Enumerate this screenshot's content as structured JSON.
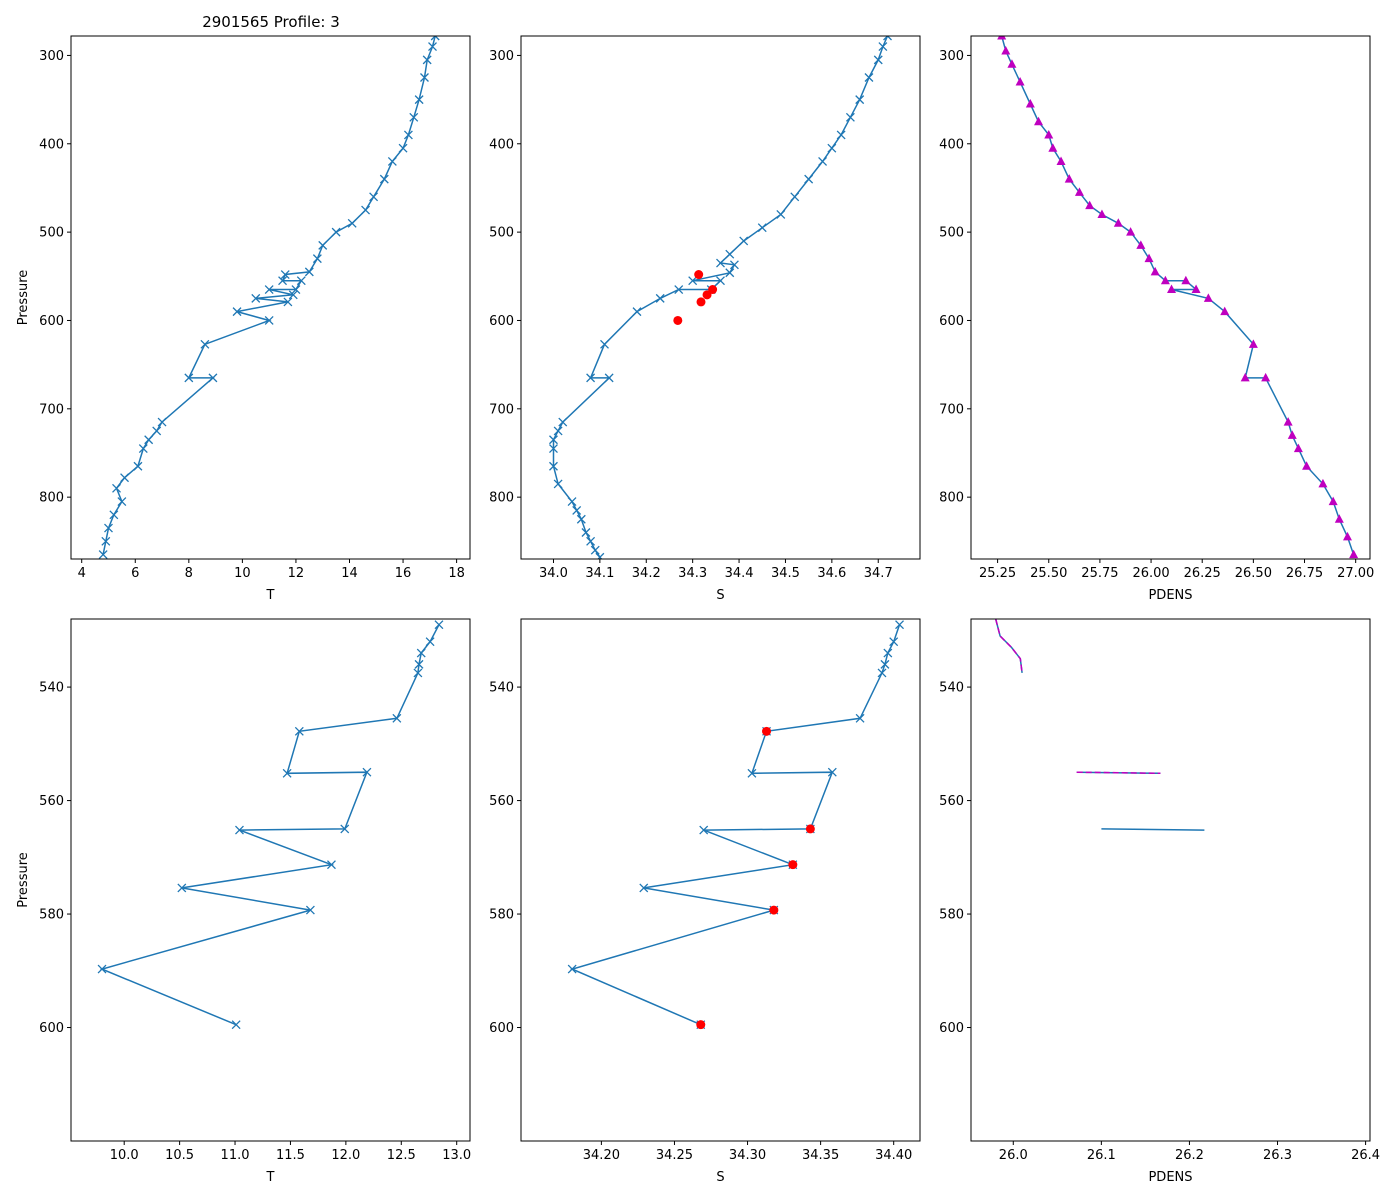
{
  "title": "2901565 Profile: 3",
  "colors": {
    "series": "#1f77b4",
    "flag": "#ff0000",
    "density": "#bf00bf"
  },
  "chart_data": [
    {
      "id": "t-full",
      "type": "scatter",
      "xlabel": "T",
      "ylabel": "Pressure",
      "xlim": [
        3.6,
        18.5
      ],
      "ylim": [
        870,
        278
      ],
      "y_inverted": true,
      "xticks": [
        4,
        6,
        8,
        10,
        12,
        14,
        16,
        18
      ],
      "xtick_labels": [
        "4",
        "6",
        "8",
        "10",
        "12",
        "14",
        "16",
        "18"
      ],
      "yticks": [
        300,
        400,
        500,
        600,
        700,
        800
      ],
      "ytick_labels": [
        "300",
        "400",
        "500",
        "600",
        "700",
        "800"
      ],
      "series": [
        {
          "name": "profile",
          "marker": "x",
          "color": "#1f77b4",
          "line": true,
          "points": [
            [
              17.2,
              278
            ],
            [
              17.1,
              290
            ],
            [
              16.9,
              305
            ],
            [
              16.8,
              325
            ],
            [
              16.6,
              350
            ],
            [
              16.4,
              370
            ],
            [
              16.2,
              390
            ],
            [
              16.0,
              405
            ],
            [
              15.6,
              420
            ],
            [
              15.3,
              440
            ],
            [
              14.9,
              460
            ],
            [
              14.6,
              475
            ],
            [
              14.1,
              490
            ],
            [
              13.5,
              500
            ],
            [
              13.0,
              515
            ],
            [
              12.8,
              530
            ],
            [
              12.5,
              545
            ],
            [
              11.6,
              548
            ],
            [
              11.5,
              555
            ],
            [
              12.2,
              555
            ],
            [
              12.0,
              565
            ],
            [
              11.0,
              565
            ],
            [
              11.9,
              571
            ],
            [
              10.5,
              575
            ],
            [
              11.7,
              579
            ],
            [
              9.8,
              590
            ],
            [
              11.0,
              600
            ],
            [
              8.6,
              627
            ],
            [
              8.0,
              665
            ],
            [
              8.9,
              665
            ],
            [
              7.0,
              715
            ],
            [
              6.8,
              725
            ],
            [
              6.5,
              735
            ],
            [
              6.3,
              745
            ],
            [
              6.1,
              765
            ],
            [
              5.6,
              778
            ],
            [
              5.3,
              790
            ],
            [
              5.5,
              805
            ],
            [
              5.2,
              820
            ],
            [
              5.0,
              835
            ],
            [
              4.9,
              850
            ],
            [
              4.8,
              865
            ]
          ]
        }
      ]
    },
    {
      "id": "s-full",
      "type": "scatter",
      "xlabel": "S",
      "ylabel": "",
      "xlim": [
        33.93,
        34.79
      ],
      "ylim": [
        870,
        278
      ],
      "y_inverted": true,
      "xticks": [
        34.0,
        34.1,
        34.2,
        34.3,
        34.4,
        34.5,
        34.6,
        34.7
      ],
      "xtick_labels": [
        "34.0",
        "34.1",
        "34.2",
        "34.3",
        "34.4",
        "34.5",
        "34.6",
        "34.7"
      ],
      "yticks": [
        300,
        400,
        500,
        600,
        700,
        800
      ],
      "ytick_labels": [
        "300",
        "400",
        "500",
        "600",
        "700",
        "800"
      ],
      "series": [
        {
          "name": "profile",
          "marker": "x",
          "color": "#1f77b4",
          "line": true,
          "points": [
            [
              34.72,
              278
            ],
            [
              34.71,
              290
            ],
            [
              34.7,
              305
            ],
            [
              34.68,
              325
            ],
            [
              34.66,
              350
            ],
            [
              34.64,
              370
            ],
            [
              34.62,
              390
            ],
            [
              34.6,
              405
            ],
            [
              34.58,
              420
            ],
            [
              34.55,
              440
            ],
            [
              34.52,
              460
            ],
            [
              34.49,
              480
            ],
            [
              34.45,
              495
            ],
            [
              34.41,
              510
            ],
            [
              34.38,
              525
            ],
            [
              34.36,
              535
            ],
            [
              34.39,
              537
            ],
            [
              34.38,
              546
            ],
            [
              34.3,
              555
            ],
            [
              34.36,
              555
            ],
            [
              34.34,
              565
            ],
            [
              34.27,
              565
            ],
            [
              34.23,
              575
            ],
            [
              34.18,
              590
            ],
            [
              34.11,
              627
            ],
            [
              34.08,
              665
            ],
            [
              34.12,
              665
            ],
            [
              34.02,
              715
            ],
            [
              34.01,
              725
            ],
            [
              34.0,
              735
            ],
            [
              34.0,
              745
            ],
            [
              34.0,
              765
            ],
            [
              34.01,
              785
            ],
            [
              34.04,
              805
            ],
            [
              34.05,
              815
            ],
            [
              34.06,
              825
            ],
            [
              34.07,
              840
            ],
            [
              34.08,
              850
            ],
            [
              34.09,
              860
            ],
            [
              34.1,
              868
            ]
          ]
        },
        {
          "name": "flagged",
          "marker": "circle",
          "color": "#ff0000",
          "line": false,
          "points": [
            [
              34.313,
              548
            ],
            [
              34.343,
              565
            ],
            [
              34.331,
              571
            ],
            [
              34.318,
              579
            ],
            [
              34.268,
              600
            ]
          ]
        }
      ]
    },
    {
      "id": "pdens-full",
      "type": "scatter",
      "xlabel": "PDENS",
      "ylabel": "",
      "xlim": [
        25.12,
        27.07
      ],
      "ylim": [
        870,
        278
      ],
      "y_inverted": true,
      "xticks": [
        25.25,
        25.5,
        25.75,
        26.0,
        26.25,
        26.5,
        26.75,
        27.0
      ],
      "xtick_labels": [
        "25.25",
        "25.50",
        "25.75",
        "26.00",
        "26.25",
        "26.50",
        "26.75",
        "27.00"
      ],
      "yticks": [
        300,
        400,
        500,
        600,
        700,
        800
      ],
      "ytick_labels": [
        "300",
        "400",
        "500",
        "600",
        "700",
        "800"
      ],
      "series": [
        {
          "name": "density",
          "marker": "triangle",
          "color": "#bf00bf",
          "line": true,
          "line_color": "#1f77b4",
          "points": [
            [
              25.27,
              278
            ],
            [
              25.29,
              295
            ],
            [
              25.32,
              310
            ],
            [
              25.36,
              330
            ],
            [
              25.41,
              355
            ],
            [
              25.45,
              375
            ],
            [
              25.5,
              390
            ],
            [
              25.52,
              405
            ],
            [
              25.56,
              420
            ],
            [
              25.6,
              440
            ],
            [
              25.65,
              455
            ],
            [
              25.7,
              470
            ],
            [
              25.76,
              480
            ],
            [
              25.84,
              490
            ],
            [
              25.9,
              500
            ],
            [
              25.95,
              515
            ],
            [
              25.99,
              530
            ],
            [
              26.02,
              545
            ],
            [
              26.07,
              555
            ],
            [
              26.17,
              555
            ],
            [
              26.22,
              565
            ],
            [
              26.1,
              565
            ],
            [
              26.28,
              575
            ],
            [
              26.36,
              590
            ],
            [
              26.5,
              627
            ],
            [
              26.46,
              665
            ],
            [
              26.56,
              665
            ],
            [
              26.67,
              715
            ],
            [
              26.69,
              730
            ],
            [
              26.72,
              745
            ],
            [
              26.76,
              765
            ],
            [
              26.84,
              785
            ],
            [
              26.89,
              805
            ],
            [
              26.92,
              825
            ],
            [
              26.96,
              845
            ],
            [
              26.99,
              865
            ]
          ]
        }
      ]
    },
    {
      "id": "t-zoom",
      "type": "scatter",
      "xlabel": "T",
      "ylabel": "Pressure",
      "xlim": [
        9.52,
        13.12
      ],
      "ylim": [
        620,
        528
      ],
      "y_inverted": true,
      "xticks": [
        10.0,
        10.5,
        11.0,
        11.5,
        12.0,
        12.5,
        13.0
      ],
      "xtick_labels": [
        "10.0",
        "10.5",
        "11.0",
        "11.5",
        "12.0",
        "12.5",
        "13.0"
      ],
      "yticks": [
        540,
        560,
        580,
        600
      ],
      "ytick_labels": [
        "540",
        "560",
        "580",
        "600"
      ],
      "series": [
        {
          "name": "profile",
          "marker": "x",
          "color": "#1f77b4",
          "line": true,
          "points": [
            [
              12.84,
              529
            ],
            [
              12.76,
              532
            ],
            [
              12.68,
              534
            ],
            [
              12.66,
              536
            ],
            [
              12.65,
              537.5
            ],
            [
              12.46,
              545.5
            ],
            [
              11.58,
              547.8
            ],
            [
              11.47,
              555.2
            ],
            [
              12.19,
              555.0
            ],
            [
              11.99,
              565.0
            ],
            [
              11.04,
              565.2
            ],
            [
              11.87,
              571.3
            ],
            [
              10.52,
              575.4
            ],
            [
              11.68,
              579.3
            ],
            [
              9.8,
              589.7
            ],
            [
              11.01,
              599.5
            ]
          ]
        }
      ]
    },
    {
      "id": "s-zoom",
      "type": "scatter",
      "xlabel": "S",
      "ylabel": "",
      "xlim": [
        34.145,
        34.418
      ],
      "ylim": [
        620,
        528
      ],
      "y_inverted": true,
      "xticks": [
        34.2,
        34.25,
        34.3,
        34.35,
        34.4
      ],
      "xtick_labels": [
        "34.20",
        "34.25",
        "34.30",
        "34.35",
        "34.40"
      ],
      "yticks": [
        540,
        560,
        580,
        600
      ],
      "ytick_labels": [
        "540",
        "560",
        "580",
        "600"
      ],
      "series": [
        {
          "name": "profile",
          "marker": "x",
          "color": "#1f77b4",
          "line": true,
          "points": [
            [
              34.404,
              529
            ],
            [
              34.4,
              532
            ],
            [
              34.396,
              534
            ],
            [
              34.394,
              536
            ],
            [
              34.392,
              537.5
            ],
            [
              34.377,
              545.5
            ],
            [
              34.313,
              547.8
            ],
            [
              34.303,
              555.2
            ],
            [
              34.358,
              555.0
            ],
            [
              34.343,
              565.0
            ],
            [
              34.27,
              565.2
            ],
            [
              34.331,
              571.3
            ],
            [
              34.229,
              575.4
            ],
            [
              34.318,
              579.3
            ],
            [
              34.18,
              589.7
            ],
            [
              34.268,
              599.5
            ]
          ]
        },
        {
          "name": "flagged",
          "marker": "circle",
          "color": "#ff0000",
          "line": false,
          "points": [
            [
              34.313,
              547.8
            ],
            [
              34.343,
              565.0
            ],
            [
              34.331,
              571.3
            ],
            [
              34.318,
              579.3
            ],
            [
              34.268,
              599.5
            ]
          ]
        }
      ]
    },
    {
      "id": "pdens-zoom",
      "type": "line",
      "xlabel": "PDENS",
      "ylabel": "",
      "xlim": [
        25.952,
        26.405
      ],
      "ylim": [
        620,
        528
      ],
      "y_inverted": true,
      "xticks": [
        26.0,
        26.1,
        26.2,
        26.3,
        26.4
      ],
      "xtick_labels": [
        "26.0",
        "26.1",
        "26.2",
        "26.3",
        "26.4"
      ],
      "yticks": [
        540,
        560,
        580,
        600
      ],
      "ytick_labels": [
        "540",
        "560",
        "580",
        "600"
      ],
      "series": [
        {
          "name": "density-line",
          "marker": "none",
          "color": "#1f77b4",
          "line": true,
          "points": [
            [
              25.98,
              528
            ],
            [
              25.985,
              531
            ],
            [
              25.998,
              533
            ],
            [
              26.008,
              535
            ],
            [
              26.01,
              537.5
            ],
            [
              null,
              null
            ],
            [
              26.072,
              555.0
            ],
            [
              26.167,
              555.2
            ],
            [
              null,
              null
            ],
            [
              26.1,
              565.0
            ],
            [
              26.217,
              565.2
            ]
          ]
        },
        {
          "name": "density-dashed",
          "marker": "none",
          "color": "#bf00bf",
          "line": true,
          "dashed": true,
          "points": [
            [
              25.98,
              528
            ],
            [
              25.985,
              531
            ],
            [
              25.998,
              533
            ],
            [
              26.008,
              535
            ],
            [
              26.01,
              537.5
            ],
            [
              null,
              null
            ],
            [
              26.072,
              555.0
            ],
            [
              26.167,
              555.2
            ]
          ]
        }
      ]
    }
  ]
}
